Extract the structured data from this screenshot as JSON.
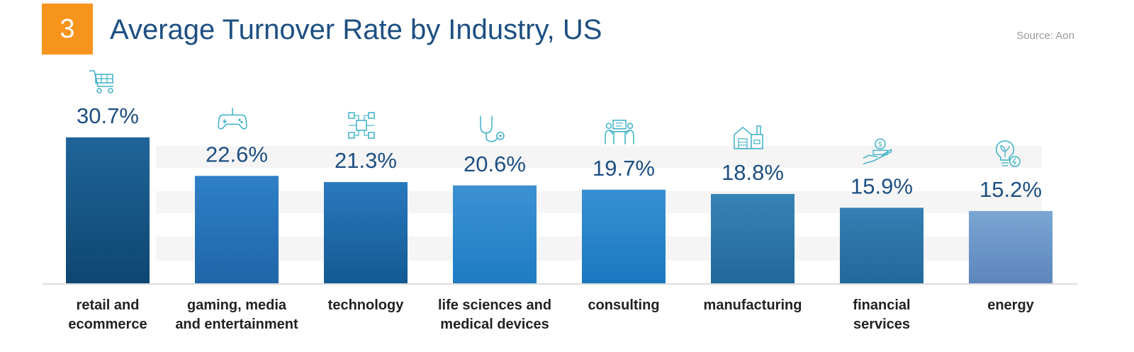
{
  "header": {
    "badge_number": "3",
    "badge_color": "#f7941d",
    "source": "Source: Aon"
  },
  "chart_data": {
    "type": "bar",
    "title": "Average Turnover Rate by Industry, US",
    "xlabel": "",
    "ylabel": "",
    "ylim": [
      0,
      31
    ],
    "grid": false,
    "categories": [
      [
        "retail and",
        "ecommerce"
      ],
      [
        "gaming, media",
        "and entertainment"
      ],
      [
        "technology"
      ],
      [
        "life sciences and",
        "medical devices"
      ],
      [
        "consulting"
      ],
      [
        "manufacturing"
      ],
      [
        "financial",
        "services"
      ],
      [
        "energy"
      ]
    ],
    "values": [
      30.7,
      22.6,
      21.3,
      20.6,
      19.7,
      18.8,
      15.9,
      15.2
    ],
    "data_labels": [
      "30.7%",
      "22.6%",
      "21.3%",
      "20.6%",
      "19.7%",
      "18.8%",
      "15.9%",
      "15.2%"
    ],
    "icons": [
      "shopping-cart-icon",
      "game-controller-icon",
      "circuit-chip-icon",
      "stethoscope-icon",
      "consulting-meeting-icon",
      "factory-icon",
      "hand-money-icon",
      "lightbulb-energy-icon"
    ],
    "bar_colors": [
      [
        "#1f6598",
        "#0f4671"
      ],
      [
        "#2e80c6",
        "#1f65a8"
      ],
      [
        "#2a78be",
        "#135a92"
      ],
      [
        "#3d91d2",
        "#1f7cc3"
      ],
      [
        "#3890d2",
        "#1a78c0"
      ],
      [
        "#3783b6",
        "#22689a"
      ],
      [
        "#357fb4",
        "#22689b"
      ],
      [
        "#7aa6d3",
        "#5d86bd"
      ]
    ],
    "label_color": "#1d4f82",
    "icon_color": "#3bb0c8"
  }
}
